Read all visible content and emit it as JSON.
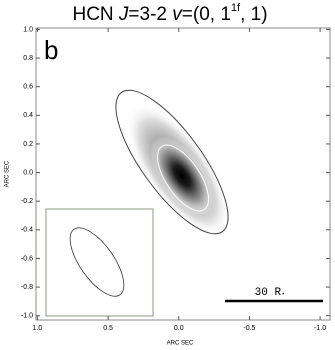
{
  "chart_data": {
    "type": "image",
    "title": {
      "prefix": "HCN ",
      "j": "J",
      "mid": "=3-2 ",
      "v": "v",
      "open": "=(0, 1",
      "sup": "1f",
      "close": ", 1)"
    },
    "panel_label": "b",
    "xlabel": "ARC SEC",
    "ylabel": "ARC SEC",
    "scale_bar": {
      "number": "30",
      "unit": "R",
      "sub": "⋆"
    },
    "xlim": [
      1.01,
      -1.07
    ],
    "ylim": [
      -1.03,
      1.01
    ],
    "xticks": [
      {
        "value": 1,
        "label": "1.0"
      },
      {
        "value": 0.5,
        "label": "0.5"
      },
      {
        "value": 0,
        "label": "0.0"
      },
      {
        "value": -0.5,
        "label": "-0.5"
      },
      {
        "value": -1,
        "label": "-1.0"
      }
    ],
    "yticks": [
      {
        "value": 1,
        "label": "1.0"
      },
      {
        "value": 0.8,
        "label": "0.8"
      },
      {
        "value": 0.6,
        "label": "0.6"
      },
      {
        "value": 0.4,
        "label": "0.4"
      },
      {
        "value": 0.2,
        "label": "0.2"
      },
      {
        "value": 0,
        "label": "0.0"
      },
      {
        "value": -0.2,
        "label": "-0.2"
      },
      {
        "value": -0.4,
        "label": "-0.4"
      },
      {
        "value": -0.6,
        "label": "-0.6"
      },
      {
        "value": -0.8,
        "label": "-0.8"
      },
      {
        "value": -1,
        "label": "-1.0"
      }
    ]
  }
}
